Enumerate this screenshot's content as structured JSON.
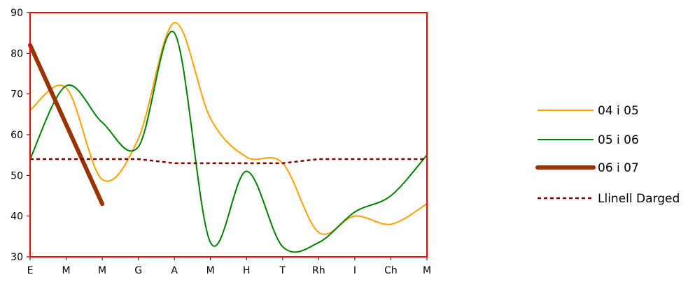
{
  "chart_data": {
    "type": "line",
    "categories": [
      "E",
      "M",
      "M",
      "G",
      "A",
      "M",
      "H",
      "T",
      "Rh",
      "I",
      "Ch",
      "M"
    ],
    "ylim": [
      30,
      90
    ],
    "yticks": [
      30,
      40,
      50,
      60,
      70,
      80,
      90
    ],
    "grid": false,
    "legend_position": "right",
    "plot_border_color": "#ff0000",
    "series": [
      {
        "name": "04 i 05",
        "color": "#ffa000",
        "width": 2,
        "dashed": false,
        "smooth": true,
        "values": [
          66,
          71.5,
          49,
          59,
          87.5,
          64,
          54.5,
          53,
          36,
          40,
          38,
          43
        ]
      },
      {
        "name": "05 i 06",
        "color": "#008000",
        "width": 2,
        "dashed": false,
        "smooth": true,
        "values": [
          54,
          72,
          63,
          57,
          85,
          33.5,
          51,
          32.5,
          33.5,
          41,
          45,
          55
        ]
      },
      {
        "name": "06 i 07",
        "color": "#993300",
        "width": 6,
        "dashed": false,
        "smooth": false,
        "values": [
          82,
          62.5,
          43,
          null,
          null,
          null,
          null,
          null,
          null,
          null,
          null,
          null
        ]
      },
      {
        "name": "Llinell Darged",
        "color": "#800000",
        "width": 2.5,
        "dashed": true,
        "smooth": false,
        "values": [
          54,
          54,
          54,
          54,
          53,
          53,
          53,
          53,
          54,
          54,
          54,
          54
        ]
      }
    ]
  }
}
